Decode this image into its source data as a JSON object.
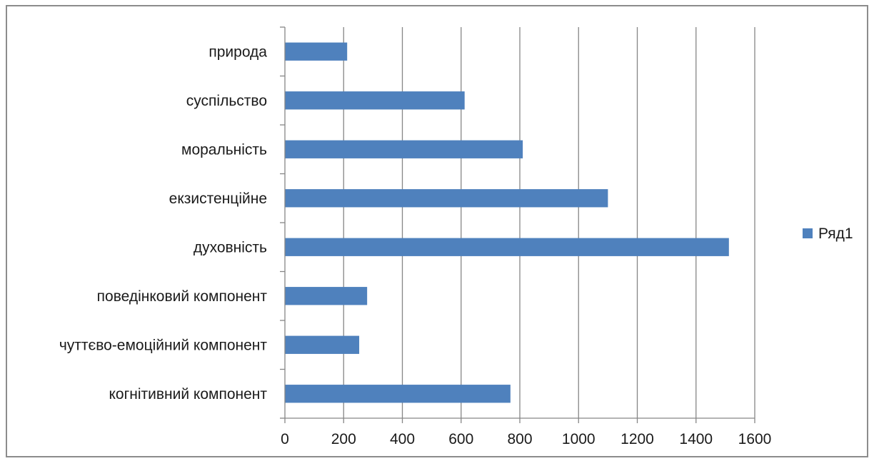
{
  "chart_data": {
    "type": "bar",
    "orientation": "horizontal",
    "categories": [
      "когнітивний компонент",
      "чуттєво-емоційний компонент",
      "поведінковий компонент",
      "духовність",
      "екзистенційне",
      "моральність",
      "суспільство",
      "природа"
    ],
    "series": [
      {
        "name": "Ряд1",
        "values": [
          768,
          253,
          280,
          1512,
          1100,
          810,
          612,
          212
        ],
        "color": "#4F81BD"
      }
    ],
    "title": "",
    "xlabel": "",
    "ylabel": "",
    "xlim": [
      0,
      1600
    ],
    "xticks": [
      0,
      200,
      400,
      600,
      800,
      1000,
      1200,
      1400,
      1600
    ],
    "xtick_labels": [
      "0",
      "200",
      "400",
      "600",
      "800",
      "1000",
      "1200",
      "1400",
      "1600"
    ],
    "grid": "vertical",
    "legend": "right",
    "frame_color": "#8C8C8C",
    "grid_color": "#868686"
  }
}
